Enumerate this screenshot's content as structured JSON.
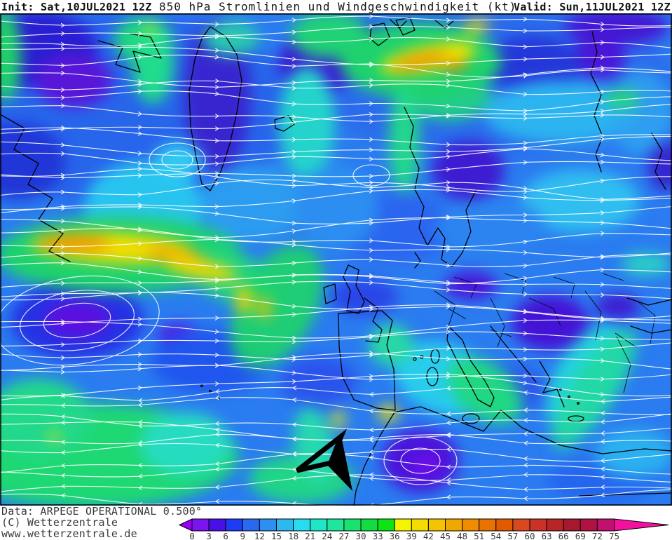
{
  "header": {
    "init": "Init: Sat,10JUL2021 12Z",
    "title": "850 hPa Stromlinien und Windgeschwindigkeit (kt)",
    "valid": "Valid: Sun,11JUL2021 12Z"
  },
  "footer": {
    "data_source": "Data: ARPEGE OPERATIONAL 0.500°",
    "copyright": "(C) Wetterzentrale",
    "website": "www.wetterzentrale.de"
  },
  "colorbar": {
    "unit": "kt",
    "ticks": [
      "0",
      "3",
      "6",
      "9",
      "12",
      "15",
      "18",
      "21",
      "24",
      "27",
      "30",
      "33",
      "36",
      "39",
      "42",
      "45",
      "48",
      "51",
      "54",
      "57",
      "60",
      "63",
      "66",
      "69",
      "72",
      "75"
    ],
    "segment_colors": [
      "#7b14f0",
      "#4810e6",
      "#1e3cf5",
      "#2a68f0",
      "#2c90f0",
      "#2eb8f0",
      "#28dcf0",
      "#1ee6c8",
      "#1ee69b",
      "#19e26e",
      "#11dc41",
      "#0ce414",
      "#f5f500",
      "#f5dc00",
      "#f5c300",
      "#f0a800",
      "#f08c00",
      "#e87300",
      "#e05a00",
      "#d9481f",
      "#c93327",
      "#b82527",
      "#a5182f",
      "#b01343",
      "#c2106e"
    ],
    "underflow_arrow_color": "#9a00f5",
    "overflow_arrow_color": "#f50f9f",
    "tick_color": "#3a3a3a"
  },
  "map": {
    "kind": "850 hPa streamlines and wind speed",
    "base_color": "#2a7cf0",
    "streamline_color": "#ffffff",
    "coastline_color": "#000000",
    "pointer_arrow_color": "#000000"
  }
}
